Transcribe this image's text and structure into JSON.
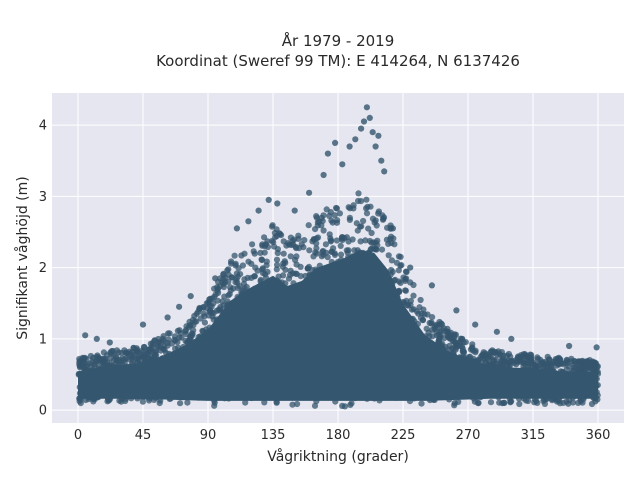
{
  "chart_data": {
    "type": "scatter",
    "title": "År 1979 - 2019",
    "subtitle": "Koordinat (Sweref 99 TM): E 414264, N 6137426",
    "xlabel": "Vågriktning (grader)",
    "ylabel": "Signifikant våghöjd (m)",
    "xlim": [
      -18,
      378
    ],
    "ylim": [
      -0.18,
      4.45
    ],
    "xticks": [
      0,
      45,
      90,
      135,
      180,
      225,
      270,
      315,
      360
    ],
    "xtick_labels": [
      "0",
      "45",
      "90",
      "135",
      "180",
      "225",
      "270",
      "315",
      "360"
    ],
    "yticks": [
      0,
      1,
      2,
      3,
      4
    ],
    "ytick_labels": [
      "0",
      "1",
      "2",
      "3",
      "4"
    ],
    "grid": true,
    "legend": "none",
    "envelope": {
      "x": [
        0,
        10,
        20,
        30,
        45,
        60,
        75,
        90,
        105,
        115,
        125,
        135,
        145,
        155,
        165,
        175,
        185,
        195,
        205,
        215,
        225,
        240,
        255,
        270,
        285,
        300,
        315,
        330,
        345,
        360
      ],
      "y_min": [
        0.08,
        0.08,
        0.08,
        0.08,
        0.07,
        0.07,
        0.06,
        0.05,
        0.05,
        0.05,
        0.05,
        0.05,
        0.05,
        0.05,
        0.05,
        0.05,
        0.05,
        0.05,
        0.05,
        0.05,
        0.05,
        0.05,
        0.06,
        0.07,
        0.08,
        0.08,
        0.08,
        0.08,
        0.08,
        0.08
      ],
      "y_max": [
        0.72,
        0.78,
        0.82,
        0.85,
        0.9,
        1.05,
        1.25,
        1.55,
        2.1,
        2.3,
        2.45,
        2.6,
        2.4,
        2.5,
        2.75,
        2.85,
        2.95,
        3.1,
        3.05,
        2.7,
        2.05,
        1.45,
        1.15,
        0.95,
        0.85,
        0.8,
        0.78,
        0.74,
        0.72,
        0.7
      ]
    },
    "outliers": {
      "x": [
        22,
        5,
        13,
        45,
        62,
        70,
        78,
        95,
        110,
        118,
        125,
        132,
        138,
        150,
        160,
        170,
        173,
        178,
        183,
        188,
        192,
        196,
        198,
        200,
        202,
        204,
        206,
        208,
        210,
        212,
        218,
        230,
        245,
        262,
        275,
        290,
        300,
        340,
        359
      ],
      "y": [
        0.95,
        1.05,
        1.0,
        1.2,
        1.3,
        1.45,
        1.6,
        1.85,
        2.55,
        2.65,
        2.8,
        2.95,
        2.9,
        2.8,
        3.05,
        3.3,
        3.6,
        3.75,
        3.45,
        3.7,
        3.8,
        3.95,
        4.05,
        4.25,
        4.1,
        3.9,
        3.7,
        3.85,
        3.5,
        3.35,
        2.55,
        2.0,
        1.75,
        1.4,
        1.2,
        1.1,
        1.0,
        0.9,
        0.88
      ]
    },
    "point_color": "#34566e",
    "plot_background": "#e5e6f0",
    "grid_color": "#ffffff"
  }
}
